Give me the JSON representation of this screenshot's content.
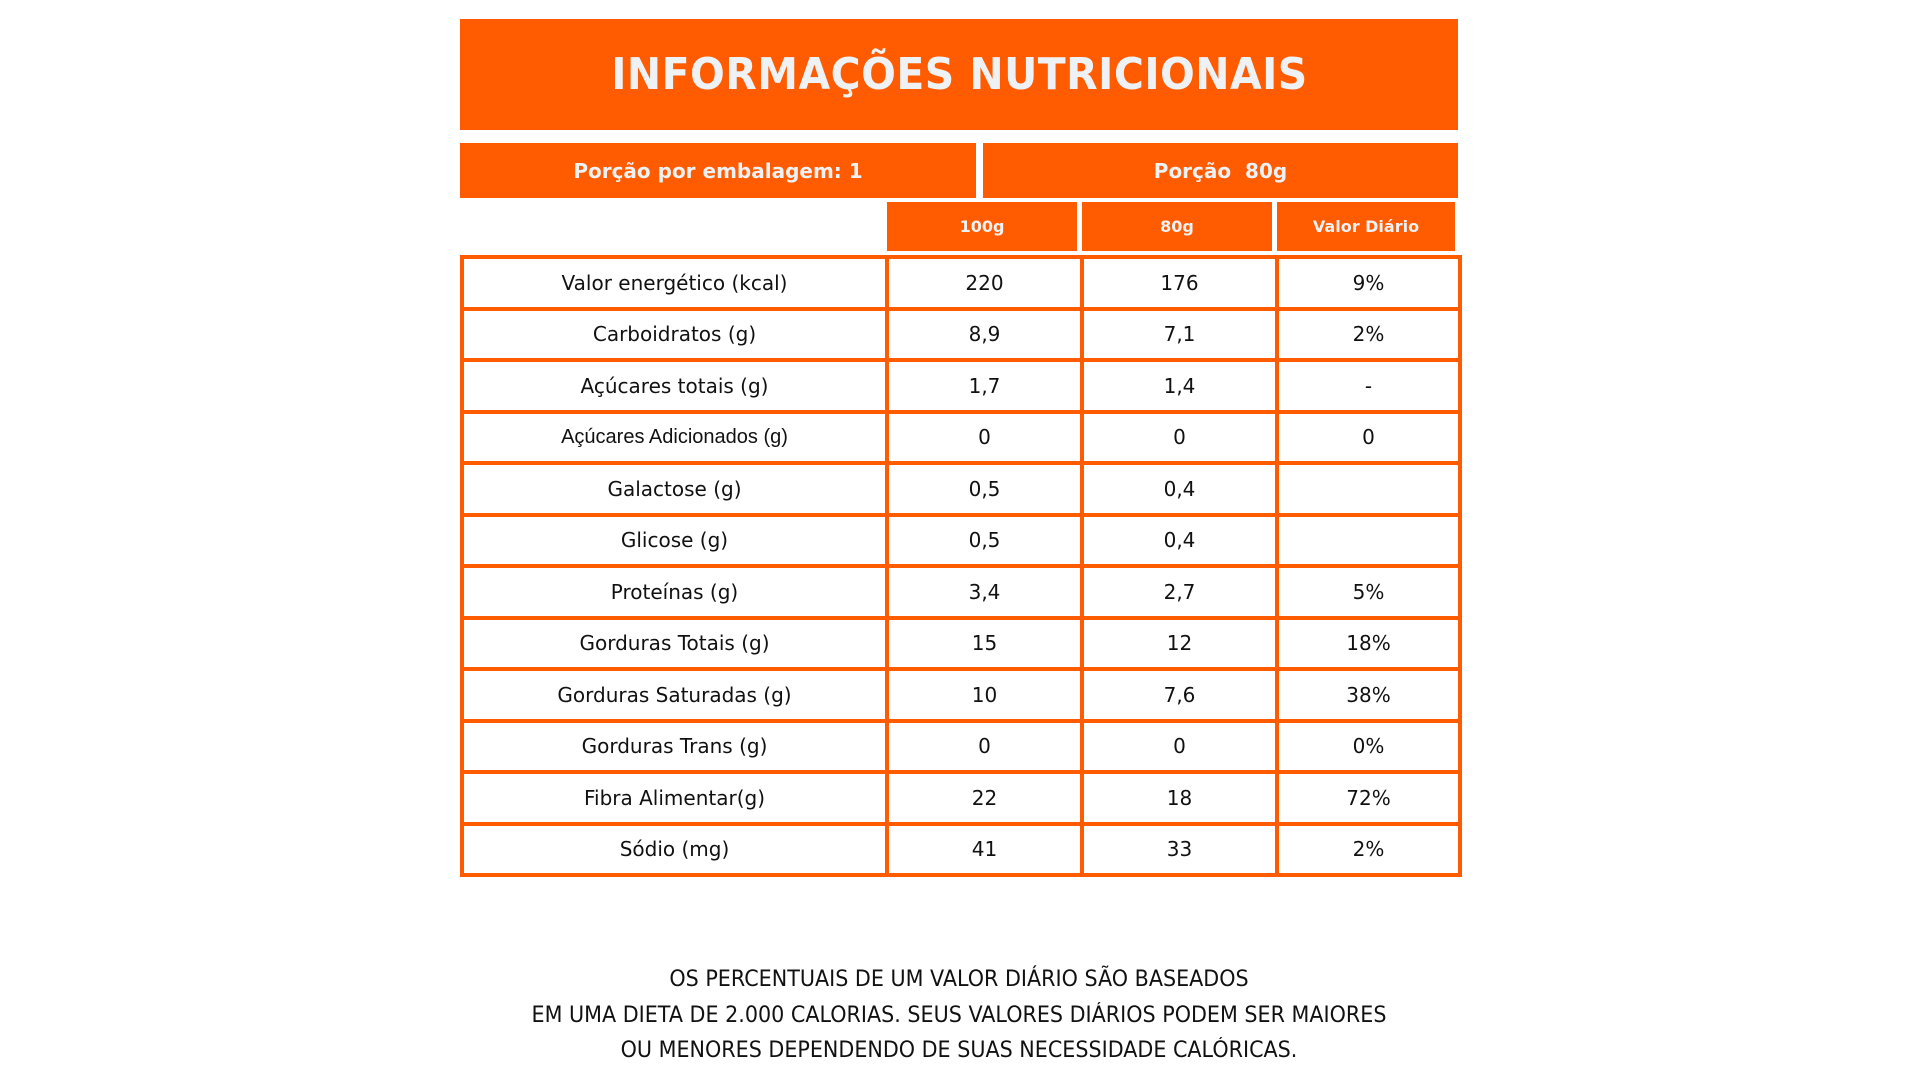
{
  "title": "INFORMAÇÕES NUTRICIONAIS",
  "serving": {
    "per_package": "Porção por embalagem: 1",
    "portion": "Porção  80g"
  },
  "columns": {
    "per_100g": "100g",
    "per_80g": "80g",
    "daily_value": "Valor Diário"
  },
  "rows": [
    {
      "label": "Valor energético (kcal)",
      "per_100g": "220",
      "per_80g": "176",
      "daily_value": "9%"
    },
    {
      "label": "Carboidratos (g)",
      "per_100g": "8,9",
      "per_80g": "7,1",
      "daily_value": "2%"
    },
    {
      "label": "Açúcares totais (g)",
      "per_100g": "1,7",
      "per_80g": "1,4",
      "daily_value": "-"
    },
    {
      "label": "Açúcares Adicionados (g)",
      "per_100g": "0",
      "per_80g": "0",
      "daily_value": "0"
    },
    {
      "label": "Galactose (g)",
      "per_100g": "0,5",
      "per_80g": "0,4",
      "daily_value": ""
    },
    {
      "label": "Glicose (g)",
      "per_100g": "0,5",
      "per_80g": "0,4",
      "daily_value": ""
    },
    {
      "label": "Proteínas (g)",
      "per_100g": "3,4",
      "per_80g": "2,7",
      "daily_value": "5%"
    },
    {
      "label": "Gorduras Totais (g)",
      "per_100g": "15",
      "per_80g": "12",
      "daily_value": "18%"
    },
    {
      "label": "Gorduras Saturadas (g)",
      "per_100g": "10",
      "per_80g": "7,6",
      "daily_value": "38%"
    },
    {
      "label": "Gorduras Trans (g)",
      "per_100g": "0",
      "per_80g": "0",
      "daily_value": "0%"
    },
    {
      "label": "Fibra Alimentar(g)",
      "per_100g": "22",
      "per_80g": "18",
      "daily_value": "72%"
    },
    {
      "label": "Sódio (mg)",
      "per_100g": "41",
      "per_80g": "33",
      "daily_value": "2%"
    }
  ],
  "footer": {
    "lines": [
      "OS PERCENTUAIS DE UM VALOR DIÁRIO SÃO BASEADOS",
      "EM UMA DIETA DE 2.000 CALORIAS. SEUS VALORES DIÁRIOS PODEM SER MAIORES",
      "OU MENORES DEPENDENDO DE SUAS NECESSIDADE CALÓRICAS."
    ]
  },
  "colors": {
    "accent": "#FF5B00",
    "header_text": "#EEF2F5",
    "body_text": "#111111",
    "background": "#FFFFFF"
  }
}
